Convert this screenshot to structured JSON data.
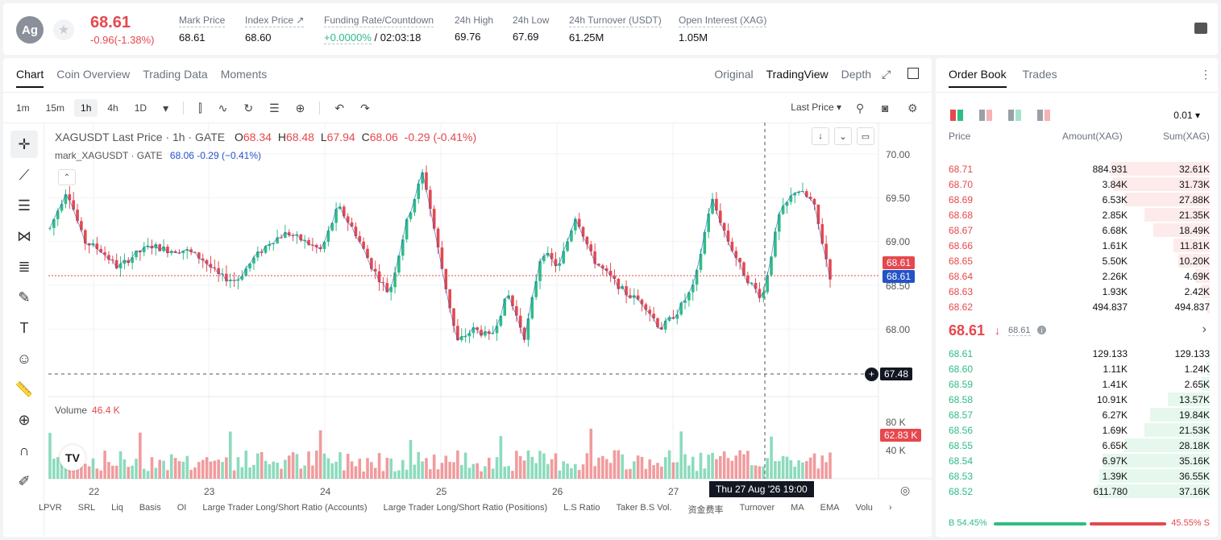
{
  "header": {
    "avatar": "Ag",
    "price": "68.61",
    "change": "-0.96(-1.38%)",
    "stats": [
      {
        "label": "Mark Price",
        "value": "68.61"
      },
      {
        "label": "Index Price ↗",
        "value": "68.60"
      },
      {
        "label": "Funding Rate/Countdown",
        "value_green": "+0.0000%",
        "value": " / 02:03:18"
      },
      {
        "label": "24h High",
        "value": "69.76"
      },
      {
        "label": "24h Low",
        "value": "67.69"
      },
      {
        "label": "24h Turnover (USDT)",
        "value": "61.25M"
      },
      {
        "label": "Open Interest (XAG)",
        "value": "1.05M"
      }
    ]
  },
  "chart_panel": {
    "tabs": [
      "Chart",
      "Coin Overview",
      "Trading Data",
      "Moments"
    ],
    "view_tabs": [
      "Original",
      "TradingView",
      "Depth"
    ],
    "intervals": [
      "1m",
      "15m",
      "1h",
      "4h",
      "1D"
    ],
    "active_interval": "1h",
    "price_source": "Last Price",
    "legend": {
      "symbol": "XAGUSDT Last Price · 1h · GATE",
      "o_label": "O",
      "o": "68.34",
      "h_label": "H",
      "h": "68.48",
      "l_label": "L",
      "l": "67.94",
      "c_label": "C",
      "c": "68.06",
      "chg": "-0.29 (-0.41%)"
    },
    "legend2": {
      "name": "mark_XAGUSDT · GATE",
      "value": "68.06 -0.29 (−0.41%)"
    },
    "volume_label": "Volume",
    "volume_value": "46.4 K",
    "price_axis": [
      "70.00",
      "69.50",
      "69.00",
      "68.50",
      "68.00"
    ],
    "volume_axis": [
      "80 K",
      "40 K"
    ],
    "last_price_badge": "68.61",
    "mark_price_badge": "68.61",
    "crosshair_price": "67.48",
    "volume_badge": "62.83 K",
    "x_axis": [
      "22",
      "23",
      "24",
      "25",
      "26",
      "27"
    ],
    "crosshair_time": "Thu 27 Aug '26   19:00",
    "indicators": [
      "LPVR",
      "SRL",
      "Liq",
      "Basis",
      "OI",
      "Large Trader Long/Short Ratio (Accounts)",
      "Large Trader Long/Short Ratio (Positions)",
      "L.S Ratio",
      "Taker B.S Vol.",
      "资金费率",
      "Turnover",
      "MA",
      "EMA",
      "Volu"
    ]
  },
  "order_book": {
    "tabs": [
      "Order Book",
      "Trades"
    ],
    "precision": "0.01",
    "headers": {
      "price": "Price",
      "amount": "Amount(XAG)",
      "sum": "Sum(XAG)"
    },
    "asks": [
      {
        "price": "68.71",
        "amount": "884.931",
        "sum": "32.61K",
        "depth": 0.88
      },
      {
        "price": "68.70",
        "amount": "3.84K",
        "sum": "31.73K",
        "depth": 0.86
      },
      {
        "price": "68.69",
        "amount": "6.53K",
        "sum": "27.88K",
        "depth": 0.76
      },
      {
        "price": "68.68",
        "amount": "2.85K",
        "sum": "21.35K",
        "depth": 0.58
      },
      {
        "price": "68.67",
        "amount": "6.68K",
        "sum": "18.49K",
        "depth": 0.5
      },
      {
        "price": "68.66",
        "amount": "1.61K",
        "sum": "11.81K",
        "depth": 0.32
      },
      {
        "price": "68.65",
        "amount": "5.50K",
        "sum": "10.20K",
        "depth": 0.28
      },
      {
        "price": "68.64",
        "amount": "2.26K",
        "sum": "4.69K",
        "depth": 0.13
      },
      {
        "price": "68.63",
        "amount": "1.93K",
        "sum": "2.42K",
        "depth": 0.07
      },
      {
        "price": "68.62",
        "amount": "494.837",
        "sum": "494.837",
        "depth": 0.02
      }
    ],
    "mid_price": "68.61",
    "mid_mark": "68.61",
    "bids": [
      {
        "price": "68.61",
        "amount": "129.133",
        "sum": "129.133",
        "depth": 0.01
      },
      {
        "price": "68.60",
        "amount": "1.11K",
        "sum": "1.24K",
        "depth": 0.03
      },
      {
        "price": "68.59",
        "amount": "1.41K",
        "sum": "2.65K",
        "depth": 0.07
      },
      {
        "price": "68.58",
        "amount": "10.91K",
        "sum": "13.57K",
        "depth": 0.37
      },
      {
        "price": "68.57",
        "amount": "6.27K",
        "sum": "19.84K",
        "depth": 0.53
      },
      {
        "price": "68.56",
        "amount": "1.69K",
        "sum": "21.53K",
        "depth": 0.58
      },
      {
        "price": "68.55",
        "amount": "6.65K",
        "sum": "28.18K",
        "depth": 0.76
      },
      {
        "price": "68.54",
        "amount": "6.97K",
        "sum": "35.16K",
        "depth": 0.95
      },
      {
        "price": "68.53",
        "amount": "1.39K",
        "sum": "36.55K",
        "depth": 0.98
      },
      {
        "price": "68.52",
        "amount": "611.780",
        "sum": "37.16K",
        "depth": 1.0
      }
    ],
    "buy_ratio": "B 54.45%",
    "sell_ratio": "45.55% S",
    "buy_fraction": 0.5445
  },
  "colors": {
    "up": "#2ebd85",
    "down": "#e5484d",
    "mark": "#2453c7"
  }
}
